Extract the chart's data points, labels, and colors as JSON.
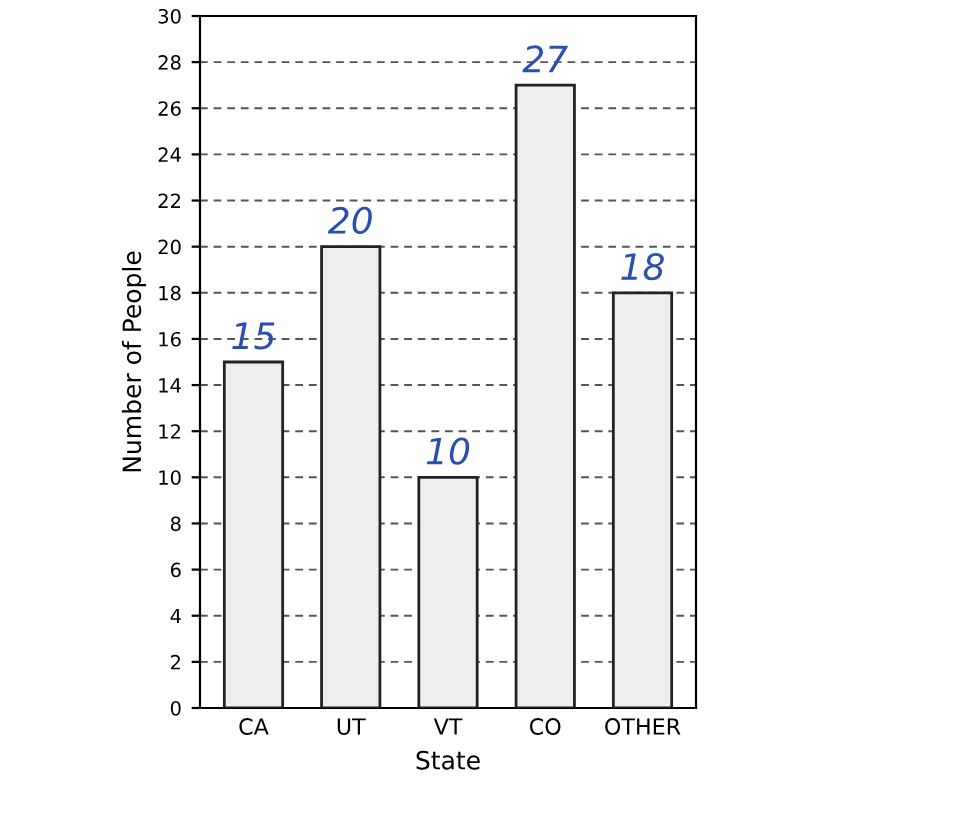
{
  "chart_data": {
    "type": "bar",
    "xlabel": "State",
    "ylabel": "Number of People",
    "categories": [
      "CA",
      "UT",
      "VT",
      "CO",
      "OTHER"
    ],
    "values": [
      15,
      20,
      10,
      27,
      18
    ],
    "color": "#eeeeee",
    "data_labels": true,
    "ylim": [
      0,
      30
    ],
    "yticks": [
      0,
      2,
      4,
      6,
      8,
      10,
      12,
      14,
      16,
      18,
      20,
      22,
      24,
      26,
      28,
      30
    ],
    "grid": "y"
  }
}
